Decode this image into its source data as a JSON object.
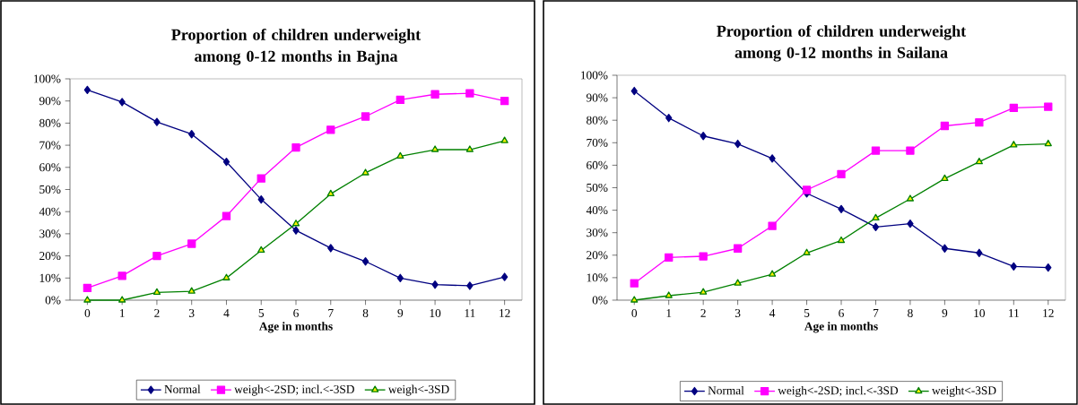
{
  "chart_data": [
    {
      "type": "line",
      "title": "Proportion of children underweight among 0-12 months in Bajna",
      "xlabel": "Age in months",
      "categories": [
        "0",
        "1",
        "2",
        "3",
        "4",
        "5",
        "6",
        "7",
        "8",
        "9",
        "10",
        "11",
        "12"
      ],
      "series": [
        {
          "name": "Normal",
          "color": "#000080",
          "marker": "diamond",
          "values": [
            95,
            89.5,
            80.5,
            75,
            62.5,
            45.5,
            31.5,
            23.5,
            17.5,
            10,
            7,
            6.5,
            10.5
          ]
        },
        {
          "name": "weigh<-2SD; incl.<-3SD",
          "color": "#ff00ff",
          "marker": "square",
          "values": [
            5.5,
            11,
            20,
            25.5,
            38,
            55,
            69,
            77,
            83,
            90.5,
            93,
            93.5,
            90
          ]
        },
        {
          "name": "weigh<-3SD",
          "color": "#008000",
          "marker": "triangle",
          "values": [
            0,
            0,
            3.5,
            4,
            10,
            22.5,
            34.5,
            48,
            57.5,
            65,
            68,
            68,
            72
          ]
        }
      ],
      "ylim": [
        0,
        100
      ],
      "yticks": [
        {
          "value": 0,
          "label": "0%"
        },
        {
          "value": 10,
          "label": "10%"
        },
        {
          "value": 20,
          "label": "20%"
        },
        {
          "value": 30,
          "label": "30%"
        },
        {
          "value": 40,
          "label": "40%"
        },
        {
          "value": 50,
          "label": "50%"
        },
        {
          "value": 60,
          "label": "60%"
        },
        {
          "value": 70,
          "label": "70%"
        },
        {
          "value": 80,
          "label": "80%"
        },
        {
          "value": 90,
          "label": "90%"
        },
        {
          "value": 100,
          "label": "100%"
        }
      ],
      "grid": false,
      "legend": "bottom",
      "line_style": "solid"
    },
    {
      "type": "line",
      "title": "Proportion of children underweight among 0-12 months in Sailana",
      "xlabel": "Age in months",
      "categories": [
        "0",
        "1",
        "2",
        "3",
        "4",
        "5",
        "6",
        "7",
        "8",
        "9",
        "10",
        "11",
        "12"
      ],
      "series": [
        {
          "name": "Normal",
          "color": "#000080",
          "marker": "diamond",
          "values": [
            93,
            81,
            73,
            69.5,
            63,
            47.5,
            40.5,
            32.5,
            34,
            23,
            21,
            15,
            14.5
          ]
        },
        {
          "name": "weigh<-2SD; incl.<-3SD",
          "color": "#ff00ff",
          "marker": "square",
          "values": [
            7.5,
            19,
            19.5,
            23,
            33,
            49,
            56,
            66.5,
            66.5,
            77.5,
            79,
            85.5,
            86
          ]
        },
        {
          "name": "weight<-3SD",
          "color": "#008000",
          "marker": "triangle",
          "values": [
            0,
            2,
            3.5,
            7.5,
            11.5,
            21,
            26.5,
            36.5,
            45,
            54,
            61.5,
            69,
            69.5
          ]
        }
      ],
      "ylim": [
        0,
        100
      ],
      "yticks": [
        {
          "value": 0,
          "label": "0%"
        },
        {
          "value": 10,
          "label": "10%"
        },
        {
          "value": 20,
          "label": "20%"
        },
        {
          "value": 30,
          "label": "30%"
        },
        {
          "value": 40,
          "label": "40%"
        },
        {
          "value": 50,
          "label": "50%"
        },
        {
          "value": 60,
          "label": "60%"
        },
        {
          "value": 70,
          "label": "70%"
        },
        {
          "value": 80,
          "label": "80%"
        },
        {
          "value": 90,
          "label": "90%"
        },
        {
          "value": 100,
          "label": "100%"
        }
      ],
      "grid": false,
      "legend": "bottom",
      "line_style": "solid"
    }
  ]
}
